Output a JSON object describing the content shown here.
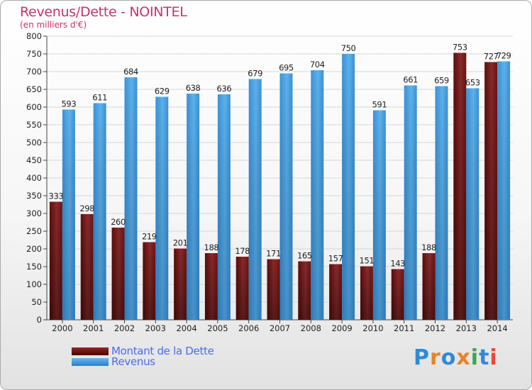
{
  "title": "Revenus/Dette - NOINTEL",
  "subtitle": "(en milliers d'€)",
  "colors": {
    "debt": "#7a1a1a",
    "revenue": "#4aa0e0",
    "title": "#c8336b",
    "legend_text": "#4a6cf0",
    "grid": "#d6d6d6"
  },
  "legend": [
    {
      "label": "Montant de la Dette",
      "series": "debt"
    },
    {
      "label": "Revenus",
      "series": "revenue"
    }
  ],
  "logo": {
    "text": "Proxiti",
    "colors": [
      "#2e8ad8",
      "#e8822a",
      "#2e8ad8",
      "#e8822a",
      "#3aa84a",
      "#2e8ad8",
      "#e84a3a"
    ]
  },
  "chart_data": {
    "type": "bar",
    "categories": [
      "2000",
      "2001",
      "2002",
      "2003",
      "2004",
      "2005",
      "2006",
      "2007",
      "2008",
      "2009",
      "2010",
      "2011",
      "2012",
      "2013",
      "2014"
    ],
    "series": [
      {
        "name": "Montant de la Dette",
        "key": "debt",
        "values": [
          333,
          298,
          260,
          219,
          201,
          188,
          178,
          171,
          165,
          157,
          151,
          143,
          188,
          753,
          727
        ]
      },
      {
        "name": "Revenus",
        "key": "revenue",
        "values": [
          593,
          611,
          684,
          629,
          638,
          636,
          679,
          695,
          704,
          750,
          591,
          661,
          659,
          653,
          729
        ]
      }
    ],
    "title": "Revenus/Dette - NOINTEL",
    "subtitle": "(en milliers d'€)",
    "ylim": [
      0,
      800
    ],
    "yticks": [
      0,
      50,
      100,
      150,
      200,
      250,
      300,
      350,
      400,
      450,
      500,
      550,
      600,
      650,
      700,
      750,
      800
    ],
    "grid": true,
    "legend_position": "bottom-left"
  }
}
